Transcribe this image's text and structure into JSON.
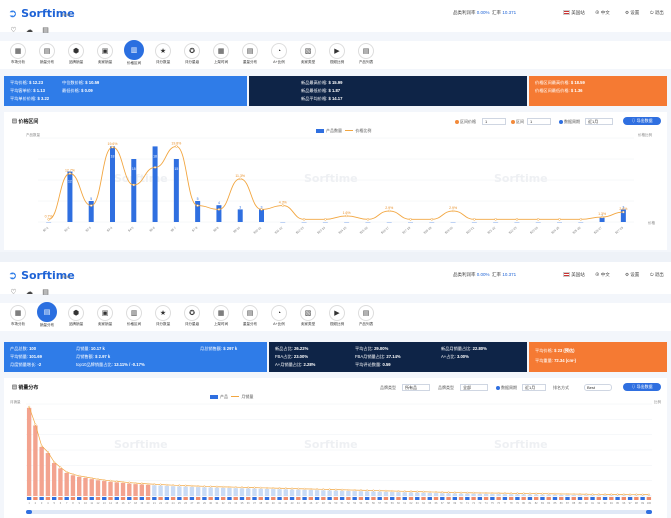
{
  "brand": {
    "name": "Sorftime",
    "sub": "Beta"
  },
  "header": {
    "stat1_label": "品类利润率",
    "stat1_value": "0.00%",
    "stat2_label": "汇率",
    "stat2_value": "10.371",
    "site": "美国站",
    "links": [
      "中文",
      "设置",
      "退出"
    ]
  },
  "screen1": {
    "active_tool": 4,
    "tools": [
      "市场分析",
      "销量分布",
      "品牌销量",
      "卖家销量",
      "价格区间",
      "评分数量",
      "评分星级",
      "上架时间",
      "重量分布",
      "A+比例",
      "卖家类型",
      "视频比例",
      "产品列表"
    ],
    "card_blue": {
      "rows": [
        [
          "平均价格",
          "$ 12.23",
          "中位数价格",
          "$ 10.59"
        ],
        [
          "平均客单价",
          "$ 1.13",
          "最低价格",
          "$ 0.09"
        ],
        [
          "平均单价价格",
          "$ 3.22",
          "",
          ""
        ]
      ]
    },
    "card_navy": {
      "rows": [
        [
          "新品最高价格",
          "$ 15.99"
        ],
        [
          "新品最低价格",
          "$ 1.87"
        ],
        [
          "新品平均价格",
          "$ 14.17"
        ]
      ]
    },
    "card_orange": {
      "rows": [
        [
          "价格区间最高价格",
          "$ 18.59"
        ],
        [
          "价格区间最低价格",
          "$ 1.36"
        ]
      ]
    },
    "panel": {
      "title": "价格区间",
      "c1_label": "区间价格",
      "c1_value": "1",
      "c2_label": "区间",
      "c2_value": "1",
      "c3_label": "数据周期",
      "c3_value": "近1月",
      "btn": "导出数据",
      "legend_bar": "产品数量",
      "legend_line": "价格比例",
      "y_left_label": "产品数量",
      "y_right_label": "价格比例",
      "x_label": "价格"
    },
    "chart_data": {
      "type": "bar",
      "categories": [
        "$0-1",
        "$1-2",
        "$2-3",
        "$3-4",
        "$4-5",
        "$5-6",
        "$6-7",
        "$7-8",
        "$8-9",
        "$9-10",
        "$10-11",
        "$11-12",
        "$12-13",
        "$13-14",
        "$14-15",
        "$15-16",
        "$16-17",
        "$17-18",
        "$18-19",
        "$19-20",
        "$20-21",
        "$21-22",
        "$22-23",
        "$23-24",
        "$24-25",
        "$25-26",
        "$26-27",
        "$27-28"
      ],
      "series": [
        {
          "name": "产品数量",
          "values": [
            0,
            12,
            5,
            18,
            15,
            18,
            15,
            5,
            4,
            3,
            3,
            0,
            0,
            0,
            0,
            0,
            0,
            0,
            0,
            0,
            0,
            0,
            0,
            0,
            0,
            0,
            1,
            3
          ]
        },
        {
          "name": "价格比例",
          "values": [
            0.7,
            12.7,
            4.3,
            19.6,
            9.7,
            14.3,
            19.8,
            4.3,
            3.3,
            11.3,
            3.3,
            4.3,
            0.7,
            0.7,
            1.6,
            0.7,
            2.9,
            0.7,
            0.7,
            2.9,
            0.7,
            0.7,
            0.7,
            0.7,
            0.7,
            0.7,
            1.3,
            2.6
          ]
        }
      ],
      "data_labels": [
        "0.7%",
        "12.7%",
        "",
        "19.6%",
        "",
        "",
        "19.8%",
        "",
        "",
        "11.3%",
        "",
        "4.3%",
        "",
        "",
        "1.6%",
        "",
        "2.9%",
        "",
        "",
        "2.9%",
        "",
        "",
        "",
        "",
        "",
        "",
        "1.3%",
        "2.6%"
      ],
      "bar_labels": [
        "",
        "12",
        "5",
        "18",
        "15",
        "18",
        "15",
        "5",
        "4",
        "3",
        "3",
        "",
        "",
        "",
        "",
        "",
        "",
        "",
        "",
        "",
        "",
        "",
        "",
        "",
        "",
        "",
        "1",
        "3"
      ]
    }
  },
  "screen2": {
    "active_tool": 1,
    "tools": [
      "市场分析",
      "销量分布",
      "品牌销量",
      "卖家销量",
      "价格区间",
      "评分数量",
      "评分星级",
      "上架时间",
      "重量分布",
      "A+比例",
      "卖家类型",
      "视频比例",
      "产品列表"
    ],
    "card_blue": {
      "rows": [
        [
          "产品总数",
          "100",
          "月销量",
          "10.17 k",
          "月总销售额",
          "$ 297 k"
        ],
        [
          "平均销量",
          "101.69",
          "月销售额",
          "$ 2.97 k",
          "",
          ""
        ],
        [
          "月度销量增长",
          "-2",
          "top10品牌销量占比",
          "13.11% / -0.17%",
          "",
          ""
        ]
      ]
    },
    "card_navy": {
      "rows": [
        [
          "新品占比",
          "26.22%",
          "平均占比",
          "29.00%",
          "新品月销量占比",
          "22.80%"
        ],
        [
          "FBA占比",
          "23.00%",
          "FBA月销量占比",
          "27.14%",
          "A+占比",
          "3.00%"
        ],
        [
          "A+月销量占比",
          "2.28%",
          "平均评论数量",
          "0.59",
          "",
          ""
        ]
      ]
    },
    "card_orange": {
      "rows": [
        [
          "平均价格",
          "$ 23 (预估)"
        ],
        [
          "平均重量",
          "72.34 (cm³)"
        ]
      ]
    },
    "panel": {
      "title": "销量分布",
      "c1_label": "品牌类型",
      "c1_value": "所有品",
      "c2_label": "品牌类型",
      "c2_value": "全部",
      "c3_label": "数据周期",
      "c3_value": "近1月",
      "c4_label": "排名方式",
      "c4_value": "Best",
      "btn": "导出数据",
      "legend_bar": "产品",
      "legend_line": "月销量",
      "y_left_label": "月销量",
      "y_right_label": "比例"
    },
    "chart_data": {
      "type": "bar",
      "categories": [
        "1",
        "2",
        "3",
        "4",
        "5",
        "6",
        "7",
        "8",
        "9",
        "10",
        "11",
        "12",
        "13",
        "14",
        "15",
        "16",
        "17",
        "18",
        "19",
        "20",
        "21",
        "22",
        "23",
        "24",
        "25",
        "26",
        "27",
        "28",
        "29",
        "30",
        "31",
        "32",
        "33",
        "34",
        "35",
        "36",
        "37",
        "38",
        "39",
        "40",
        "41",
        "42",
        "43",
        "44",
        "45",
        "46",
        "47",
        "48",
        "49",
        "50",
        "51",
        "52",
        "53",
        "54",
        "55",
        "56",
        "57",
        "58",
        "59",
        "60",
        "61",
        "62",
        "63",
        "64",
        "65",
        "66",
        "67",
        "68",
        "69",
        "70",
        "71",
        "72",
        "73",
        "74",
        "75",
        "76",
        "77",
        "78",
        "79",
        "80",
        "81",
        "82",
        "83",
        "84",
        "85",
        "86",
        "87",
        "88",
        "89",
        "90",
        "91",
        "92",
        "93",
        "94",
        "95",
        "96",
        "97",
        "98",
        "99",
        "100"
      ],
      "series": [
        {
          "name": "月销量",
          "values": [
            1150,
            920,
            640,
            560,
            430,
            360,
            300,
            270,
            250,
            235,
            220,
            205,
            195,
            185,
            178,
            170,
            162,
            155,
            150,
            145,
            140,
            136,
            132,
            128,
            125,
            122,
            119,
            116,
            113,
            110,
            108,
            106,
            104,
            102,
            100,
            98,
            96,
            94,
            92,
            90,
            88,
            86,
            84,
            82,
            80,
            78,
            76,
            74,
            72,
            70,
            68,
            66,
            64,
            62,
            60,
            58,
            56,
            54,
            52,
            50,
            48,
            46,
            44,
            42,
            40,
            38,
            36,
            34,
            32,
            30,
            29,
            28,
            27,
            26,
            25,
            24,
            23,
            22,
            21,
            20,
            19,
            18,
            17,
            16,
            15,
            14,
            13,
            12,
            11,
            10,
            9,
            9,
            8,
            8,
            7,
            7,
            6,
            6,
            5,
            5
          ]
        }
      ],
      "highlight_count": 20
    }
  }
}
